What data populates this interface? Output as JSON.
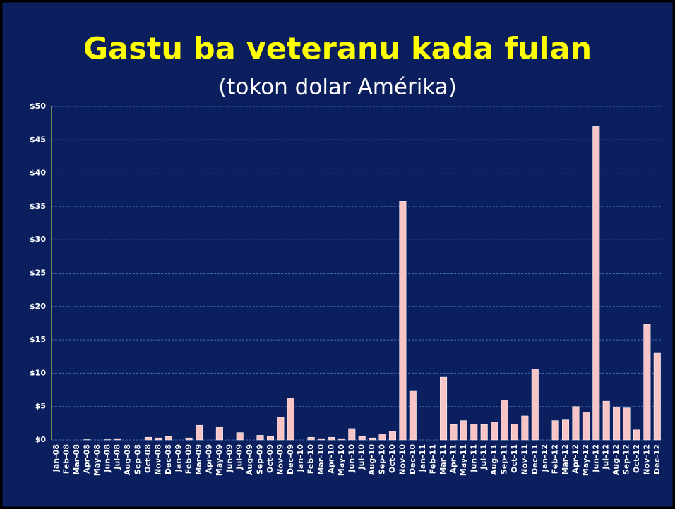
{
  "chart_data": {
    "type": "bar",
    "title": "Gastu ba veteranu kada fulan",
    "subtitle": "(tokon dolar Amérika)",
    "categories": [
      "Jan-08",
      "Feb-08",
      "Mar-08",
      "Apr-08",
      "May-08",
      "Jun-08",
      "Jul-08",
      "Aug-08",
      "Sep-08",
      "Oct-08",
      "Nov-08",
      "Dec-08",
      "Jan-09",
      "Feb-09",
      "Mar-09",
      "Apr-09",
      "May-09",
      "Jun-09",
      "Jul-09",
      "Aug-09",
      "Sep-09",
      "Oct-09",
      "Nov-09",
      "Dec-09",
      "Jan-10",
      "Feb-10",
      "Mar-10",
      "Apr-10",
      "May-10",
      "Jun-10",
      "Jul-10",
      "Aug-10",
      "Sep-10",
      "Oct-10",
      "Nov-10",
      "Dec-10",
      "Jan-11",
      "Feb-11",
      "Mar-11",
      "Apr-11",
      "May-11",
      "Jun-11",
      "Jul-11",
      "Aug-11",
      "Sep-11",
      "Oct-11",
      "Nov-11",
      "Dec-11",
      "Jan-12",
      "Feb-12",
      "Mar-12",
      "Apr-12",
      "May-12",
      "Jun-12",
      "Jul-12",
      "Aug-12",
      "Sep-12",
      "Oct-12",
      "Nov-12",
      "Dec-12"
    ],
    "values": [
      0,
      0,
      0,
      0.05,
      0,
      0.05,
      0.2,
      0,
      0,
      0.4,
      0.3,
      0.5,
      0,
      0.3,
      2.2,
      0,
      1.9,
      0,
      1.1,
      0,
      0.7,
      0.5,
      3.4,
      6.3,
      0,
      0.4,
      0.2,
      0.4,
      0.2,
      1.7,
      0.5,
      0.3,
      0.9,
      1.3,
      35.8,
      7.4,
      0,
      0,
      9.4,
      2.3,
      2.9,
      2.4,
      2.3,
      2.7,
      6.0,
      2.4,
      3.6,
      10.6,
      0,
      2.9,
      3.0,
      5.0,
      4.2,
      47.0,
      5.8,
      4.9,
      4.8,
      1.5,
      17.3,
      13.0
    ],
    "color": "#f9c4c6",
    "ylim": [
      0,
      50
    ],
    "yticks": [
      {
        "value": 0,
        "label": "$0"
      },
      {
        "value": 5,
        "label": "$5"
      },
      {
        "value": 10,
        "label": "$10"
      },
      {
        "value": 15,
        "label": "$15"
      },
      {
        "value": 20,
        "label": "$20"
      },
      {
        "value": 25,
        "label": "$25"
      },
      {
        "value": 30,
        "label": "$30"
      },
      {
        "value": 35,
        "label": "$35"
      },
      {
        "value": 40,
        "label": "$40"
      },
      {
        "value": 45,
        "label": "$45"
      },
      {
        "value": 50,
        "label": "$50"
      }
    ],
    "grid": true
  }
}
